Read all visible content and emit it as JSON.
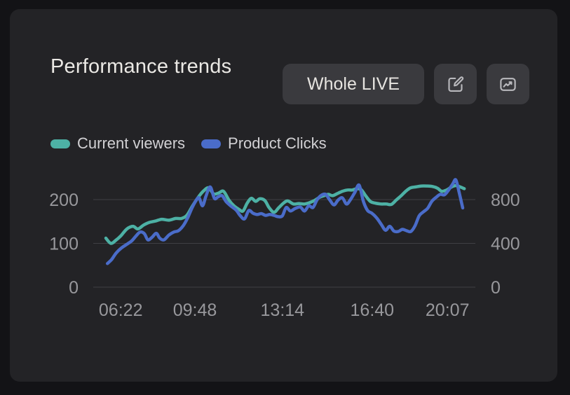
{
  "card": {
    "title": "Performance trends",
    "actions": {
      "filter_label": "Whole LIVE",
      "edit_icon": "edit-icon",
      "trend_icon": "trend-chart-icon"
    }
  },
  "legend": [
    {
      "label": "Current viewers",
      "color": "#4DB1A5"
    },
    {
      "label": "Product Clicks",
      "color": "#4A6CC9"
    }
  ],
  "colors": {
    "background": "#131316",
    "card": "#232326",
    "button": "#3a3a3e",
    "grid": "#3f3f44",
    "axis_text": "#98989c",
    "title_text": "#eae8e4",
    "series_viewers": "#4DB1A5",
    "series_clicks": "#4A6CC9"
  },
  "chart_data": {
    "type": "line",
    "title": "Performance trends",
    "grid": "horizontal",
    "legend_position": "top-left",
    "x_ticks": [
      "06:22",
      "09:48",
      "13:14",
      "16:40",
      "20:07"
    ],
    "left_axis": {
      "label": "Current viewers",
      "ticks": [
        0,
        100,
        200
      ],
      "max": 250
    },
    "right_axis": {
      "label": "Product Clicks",
      "ticks": [
        0,
        400,
        800
      ],
      "max": 1000
    },
    "series": [
      {
        "name": "Current viewers",
        "axis": "left",
        "color": "#4DB1A5",
        "points": [
          [
            0.033,
            112
          ],
          [
            0.046,
            100
          ],
          [
            0.059,
            107
          ],
          [
            0.073,
            118
          ],
          [
            0.088,
            133
          ],
          [
            0.104,
            139
          ],
          [
            0.117,
            133
          ],
          [
            0.132,
            142
          ],
          [
            0.147,
            148
          ],
          [
            0.163,
            151
          ],
          [
            0.179,
            155
          ],
          [
            0.198,
            153
          ],
          [
            0.216,
            157
          ],
          [
            0.231,
            157
          ],
          [
            0.245,
            164
          ],
          [
            0.26,
            186
          ],
          [
            0.277,
            208
          ],
          [
            0.289,
            220
          ],
          [
            0.302,
            227
          ],
          [
            0.315,
            213
          ],
          [
            0.328,
            215
          ],
          [
            0.341,
            219
          ],
          [
            0.355,
            199
          ],
          [
            0.368,
            186
          ],
          [
            0.381,
            178
          ],
          [
            0.392,
            174
          ],
          [
            0.403,
            192
          ],
          [
            0.414,
            203
          ],
          [
            0.425,
            196
          ],
          [
            0.436,
            202
          ],
          [
            0.449,
            198
          ],
          [
            0.46,
            182
          ],
          [
            0.473,
            171
          ],
          [
            0.485,
            181
          ],
          [
            0.498,
            192
          ],
          [
            0.509,
            197
          ],
          [
            0.524,
            190
          ],
          [
            0.538,
            191
          ],
          [
            0.553,
            190
          ],
          [
            0.566,
            193
          ],
          [
            0.579,
            198
          ],
          [
            0.592,
            205
          ],
          [
            0.604,
            209
          ],
          [
            0.615,
            212
          ],
          [
            0.626,
            209
          ],
          [
            0.639,
            214
          ],
          [
            0.652,
            219
          ],
          [
            0.665,
            222
          ],
          [
            0.678,
            222
          ],
          [
            0.69,
            225
          ],
          [
            0.701,
            223
          ],
          [
            0.712,
            210
          ],
          [
            0.725,
            196
          ],
          [
            0.738,
            192
          ],
          [
            0.753,
            190
          ],
          [
            0.767,
            190
          ],
          [
            0.78,
            189
          ],
          [
            0.793,
            199
          ],
          [
            0.806,
            209
          ],
          [
            0.819,
            220
          ],
          [
            0.831,
            227
          ],
          [
            0.844,
            229
          ],
          [
            0.859,
            231
          ],
          [
            0.873,
            231
          ],
          [
            0.888,
            230
          ],
          [
            0.901,
            226
          ],
          [
            0.912,
            219
          ],
          [
            0.925,
            222
          ],
          [
            0.938,
            229
          ],
          [
            0.949,
            232
          ],
          [
            0.96,
            229
          ],
          [
            0.971,
            225
          ]
        ]
      },
      {
        "name": "Product Clicks",
        "axis": "right",
        "color": "#4A6CC9",
        "points": [
          [
            0.037,
            216
          ],
          [
            0.048,
            252
          ],
          [
            0.06,
            312
          ],
          [
            0.073,
            356
          ],
          [
            0.088,
            392
          ],
          [
            0.101,
            424
          ],
          [
            0.112,
            468
          ],
          [
            0.123,
            504
          ],
          [
            0.134,
            488
          ],
          [
            0.143,
            432
          ],
          [
            0.154,
            456
          ],
          [
            0.165,
            492
          ],
          [
            0.174,
            448
          ],
          [
            0.185,
            432
          ],
          [
            0.198,
            476
          ],
          [
            0.211,
            504
          ],
          [
            0.223,
            516
          ],
          [
            0.236,
            564
          ],
          [
            0.247,
            632
          ],
          [
            0.258,
            720
          ],
          [
            0.269,
            792
          ],
          [
            0.277,
            816
          ],
          [
            0.286,
            744
          ],
          [
            0.295,
            832
          ],
          [
            0.306,
            916
          ],
          [
            0.317,
            812
          ],
          [
            0.326,
            824
          ],
          [
            0.337,
            836
          ],
          [
            0.348,
            780
          ],
          [
            0.361,
            740
          ],
          [
            0.374,
            704
          ],
          [
            0.385,
            652
          ],
          [
            0.396,
            624
          ],
          [
            0.407,
            700
          ],
          [
            0.418,
            676
          ],
          [
            0.429,
            664
          ],
          [
            0.44,
            672
          ],
          [
            0.451,
            656
          ],
          [
            0.462,
            664
          ],
          [
            0.473,
            656
          ],
          [
            0.484,
            644
          ],
          [
            0.495,
            652
          ],
          [
            0.505,
            728
          ],
          [
            0.516,
            696
          ],
          [
            0.529,
            720
          ],
          [
            0.542,
            732
          ],
          [
            0.553,
            696
          ],
          [
            0.564,
            744
          ],
          [
            0.575,
            728
          ],
          [
            0.586,
            800
          ],
          [
            0.597,
            840
          ],
          [
            0.608,
            848
          ],
          [
            0.619,
            796
          ],
          [
            0.63,
            752
          ],
          [
            0.641,
            796
          ],
          [
            0.652,
            816
          ],
          [
            0.663,
            760
          ],
          [
            0.674,
            804
          ],
          [
            0.685,
            868
          ],
          [
            0.696,
            932
          ],
          [
            0.707,
            784
          ],
          [
            0.718,
            700
          ],
          [
            0.729,
            676
          ],
          [
            0.742,
            632
          ],
          [
            0.754,
            572
          ],
          [
            0.765,
            520
          ],
          [
            0.776,
            556
          ],
          [
            0.787,
            512
          ],
          [
            0.798,
            508
          ],
          [
            0.809,
            528
          ],
          [
            0.82,
            516
          ],
          [
            0.831,
            508
          ],
          [
            0.842,
            560
          ],
          [
            0.853,
            652
          ],
          [
            0.864,
            688
          ],
          [
            0.875,
            720
          ],
          [
            0.886,
            784
          ],
          [
            0.897,
            820
          ],
          [
            0.908,
            848
          ],
          [
            0.919,
            844
          ],
          [
            0.93,
            888
          ],
          [
            0.941,
            944
          ],
          [
            0.949,
            980
          ],
          [
            0.958,
            860
          ],
          [
            0.967,
            724
          ]
        ]
      }
    ]
  }
}
